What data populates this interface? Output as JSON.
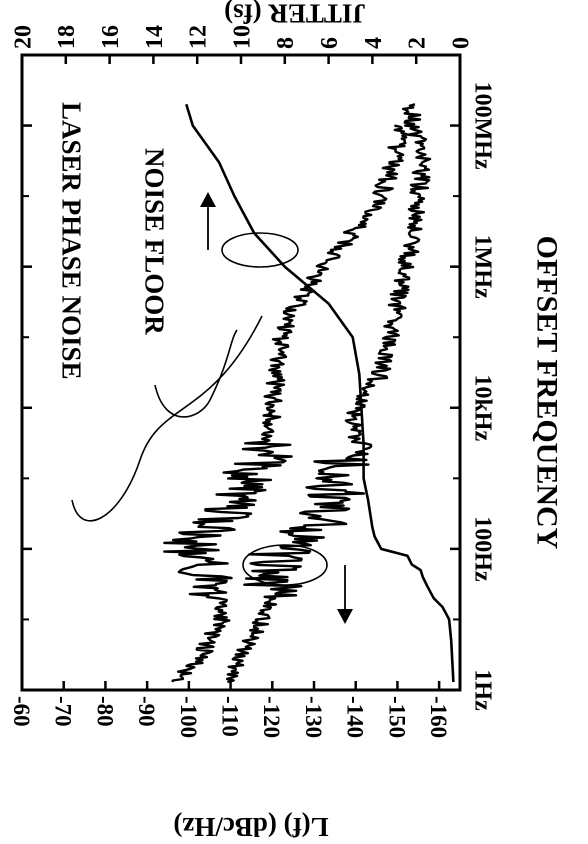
{
  "chart_data": {
    "type": "line",
    "orientation": "rotated 90 degrees clockwise",
    "xlabel": "OFFSET FREQUENCY",
    "x_scale": "log",
    "x_ticks": [
      {
        "value": 1,
        "label": "1Hz"
      },
      {
        "value": 100,
        "label": "100Hz"
      },
      {
        "value": 10000,
        "label": "10kHz"
      },
      {
        "value": 1000000,
        "label": "1MHz"
      },
      {
        "value": 100000000,
        "label": "100MHz"
      }
    ],
    "xlim_hz": [
      1,
      1000000000
    ],
    "ylabel_left": "L(f) (dBc/Hz)",
    "ylim_left": [
      -165,
      -60
    ],
    "yticks_left": [
      "-60",
      "-70",
      "-80",
      "-90",
      "-100",
      "-110",
      "-120",
      "-130",
      "-140",
      "-150",
      "-160"
    ],
    "ylabel_right": "JITTER (fs)",
    "ylim_right": [
      0,
      20
    ],
    "yticks_right": [
      "0",
      "2",
      "4",
      "6",
      "8",
      "10",
      "12",
      "14",
      "16",
      "18",
      "20"
    ],
    "annotations": [
      "LASER PHASE NOISE",
      "NOISE FLOOR"
    ],
    "series": [
      {
        "name": "LASER PHASE NOISE",
        "axis": "left",
        "style": "noisy",
        "x": [
          1.3,
          2,
          3,
          5,
          10,
          20,
          40,
          70,
          100,
          150,
          200,
          300,
          500,
          1000,
          2000,
          3000,
          5000,
          10000,
          30000,
          100000,
          200000,
          500000,
          1000000,
          2000000,
          5000000,
          10000000,
          30000000,
          100000000
        ],
        "y": [
          -96,
          -100,
          -103,
          -105,
          -108,
          -107,
          -105,
          -102,
          -100,
          -102,
          -105,
          -108,
          -110,
          -113,
          -118,
          -119,
          -120,
          -120,
          -121,
          -122,
          -124,
          -129,
          -132,
          -137,
          -142,
          -146,
          -149,
          -151
        ]
      },
      {
        "name": "NOISE FLOOR",
        "axis": "left",
        "style": "noisy",
        "x": [
          1.3,
          2,
          3,
          5,
          10,
          20,
          40,
          70,
          100,
          150,
          200,
          300,
          500,
          1000,
          3000,
          10000,
          30000,
          100000,
          300000,
          1000000,
          3000000,
          10000000,
          30000000,
          100000000,
          200000000
        ],
        "y": [
          -110,
          -111,
          -112,
          -114,
          -118,
          -120,
          -120,
          -120,
          -123,
          -126,
          -130,
          -133,
          -135,
          -135,
          -139,
          -140,
          -146,
          -148,
          -150,
          -152,
          -154,
          -155,
          -156,
          -154,
          -153
        ]
      },
      {
        "name": "Jitter",
        "axis": "right",
        "style": "smooth",
        "x": [
          1.3,
          5,
          10,
          15,
          20,
          30,
          40,
          50,
          60,
          80,
          100,
          150,
          200,
          500,
          1000,
          3000,
          10000,
          30000,
          100000,
          300000,
          1000000,
          3000000,
          10000000,
          30000000,
          100000000,
          200000000
        ],
        "y": [
          0.3,
          0.4,
          0.5,
          0.8,
          1.2,
          1.5,
          1.7,
          1.8,
          2.2,
          2.4,
          3.6,
          3.9,
          4.0,
          4.2,
          4.4,
          4.4,
          4.5,
          4.6,
          4.9,
          6.0,
          8.0,
          9.4,
          10.3,
          11.0,
          12.2,
          12.5
        ]
      }
    ],
    "grid": false
  }
}
